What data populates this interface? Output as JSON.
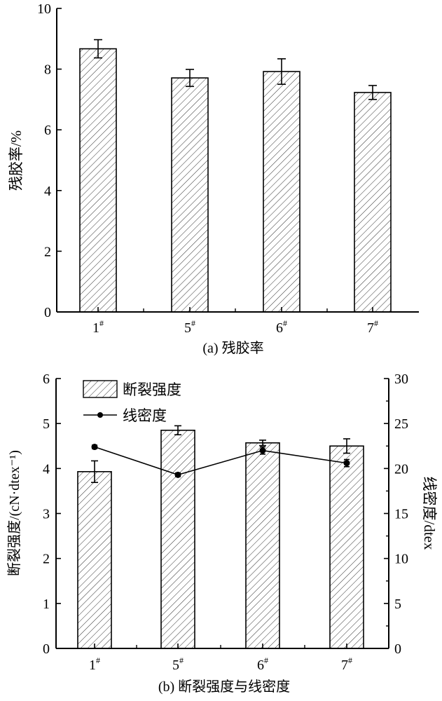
{
  "chart_data": [
    {
      "type": "bar",
      "categories": [
        "1",
        "5",
        "6",
        "7"
      ],
      "category_superscript": "#",
      "values": [
        8.67,
        7.71,
        7.92,
        7.23
      ],
      "errors": [
        0.3,
        0.28,
        0.42,
        0.23
      ],
      "ylabel": "残胶率/%",
      "caption": "(a)  残胶率",
      "ylim": [
        0,
        10
      ],
      "yticks": [
        0,
        2,
        4,
        6,
        8,
        10
      ],
      "fill": "diagonal-hatch",
      "grid": false
    },
    {
      "type": "bar+line",
      "categories": [
        "1",
        "5",
        "6",
        "7"
      ],
      "category_superscript": "#",
      "series": [
        {
          "name": "断裂强度",
          "type": "bar",
          "axis": "left",
          "values": [
            3.93,
            4.85,
            4.57,
            4.5
          ],
          "errors": [
            0.24,
            0.1,
            0.06,
            0.16
          ]
        },
        {
          "name": "线密度",
          "type": "line",
          "axis": "right",
          "values": [
            22.4,
            19.3,
            22.0,
            20.6
          ],
          "errors": [
            0.2,
            0.2,
            0.4,
            0.4
          ]
        }
      ],
      "ylabel": "断裂强度/(cN·dtex⁻¹)",
      "ylabel_right": "线密度/dtex",
      "caption": "(b)  断裂强度与线密度",
      "ylim": [
        0,
        6
      ],
      "yticks": [
        0,
        1,
        2,
        3,
        4,
        5,
        6
      ],
      "ylim_right": [
        0,
        30
      ],
      "yticks_right": [
        0,
        5,
        10,
        15,
        20,
        25,
        30
      ],
      "legend_position": "top-left",
      "grid": false
    }
  ]
}
